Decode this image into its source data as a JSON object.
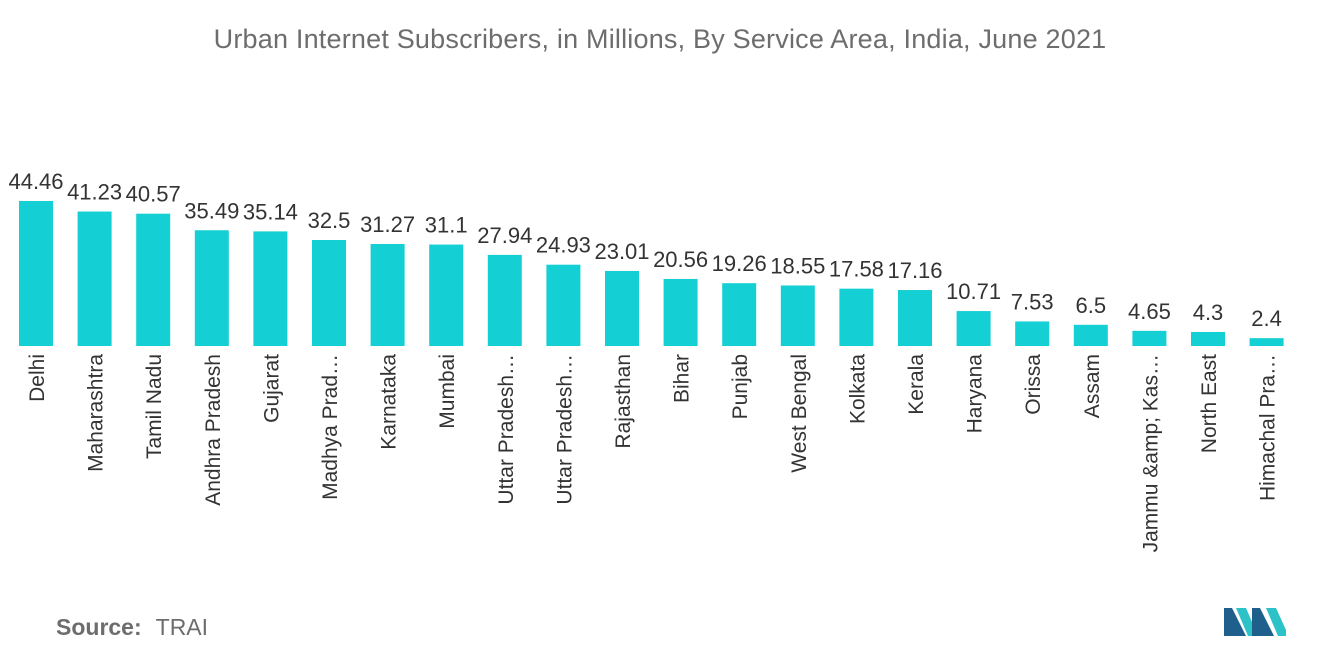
{
  "chart_data": {
    "type": "bar",
    "title": "Urban Internet Subscribers, in Millions, By Service Area, India, June 2021",
    "categories": [
      "Delhi",
      "Maharashtra",
      "Tamil Nadu",
      "Andhra Pradesh",
      "Gujarat",
      "Madhya Prad…",
      "Karnataka",
      "Mumbai",
      "Uttar Pradesh…",
      "Uttar Pradesh…",
      "Rajasthan",
      "Bihar",
      "Punjab",
      "West Bengal",
      "Kolkata",
      "Kerala",
      "Haryana",
      "Orissa",
      "Assam",
      "Jammu &amp; Kas…",
      "North East",
      "Himachal Pra…"
    ],
    "values": [
      44.46,
      41.23,
      40.57,
      35.49,
      35.14,
      32.5,
      31.27,
      31.1,
      27.94,
      24.93,
      23.01,
      20.56,
      19.26,
      18.55,
      17.58,
      17.16,
      10.71,
      7.53,
      6.5,
      4.65,
      4.3,
      2.4
    ],
    "xlabel": "",
    "ylabel": "",
    "grid": false,
    "bar_color": "#14cfd3"
  },
  "source": {
    "label": "Source:",
    "value": "TRAI"
  },
  "colors": {
    "title_text": "#6d6d6d",
    "label_text": "#333333",
    "logo_dark": "#1f5f8b",
    "logo_light": "#2dc2c8"
  }
}
